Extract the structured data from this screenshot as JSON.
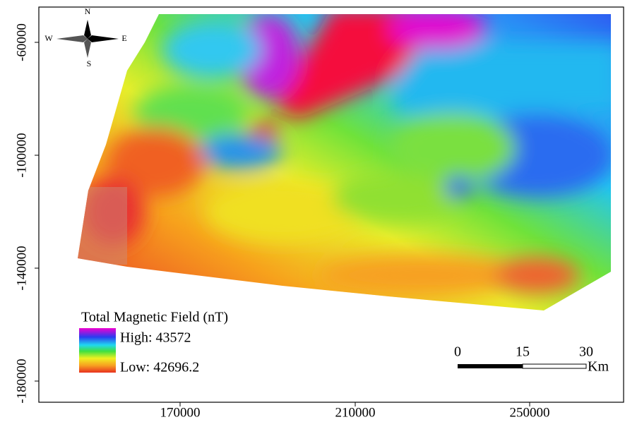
{
  "compass": {
    "north": "N",
    "south": "S",
    "east": "E",
    "west": "W"
  },
  "axes": {
    "x_ticks": [
      "170000",
      "210000",
      "250000"
    ],
    "y_ticks": [
      "-60000",
      "-100000",
      "-140000",
      "-180000"
    ]
  },
  "legend": {
    "title": "Total Magnetic Field (nT)",
    "high": "High: 43572",
    "low": "Low: 42696.2"
  },
  "scale_bar": {
    "labels": [
      "0",
      "15",
      "30"
    ],
    "unit": "Km"
  }
}
